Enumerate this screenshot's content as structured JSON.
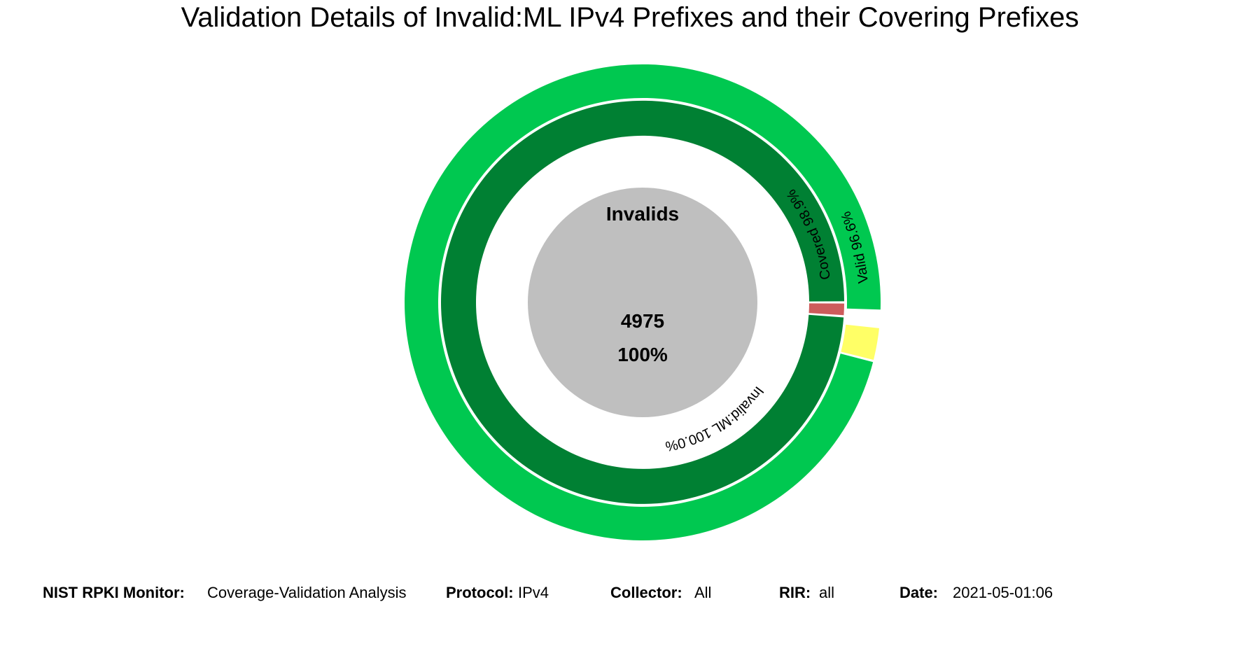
{
  "chart_data": {
    "type": "sunburst",
    "title": "Validation Details of Invalid:ML IPv4 Prefixes and their Covering Prefixes",
    "center": {
      "label": "Invalids",
      "count": "4975",
      "percent": "100%"
    },
    "rings": [
      {
        "name": "invalid-type",
        "segments": [
          {
            "name": "Invalid:ML",
            "value": 100.0,
            "label": "Invalid:ML 100.0%",
            "color": "#663399"
          }
        ]
      },
      {
        "name": "coverage",
        "segments": [
          {
            "name": "Covered",
            "value": 98.9,
            "label": "Covered 98.9%",
            "color": "#008033"
          },
          {
            "name": "Other",
            "value": 1.1,
            "label": "",
            "color": "#cd5c5c"
          }
        ]
      },
      {
        "name": "covering-validation",
        "segments": [
          {
            "name": "Valid",
            "value": 96.6,
            "label": "Valid 96.6%",
            "color": "#00c850"
          },
          {
            "name": "Other",
            "value": 2.3,
            "label": "",
            "color": "#ffff66"
          },
          {
            "name": "None",
            "value": 1.1,
            "label": "",
            "color": "#ffffff"
          }
        ]
      }
    ]
  },
  "footer": {
    "monitor_key": "NIST RPKI Monitor:",
    "monitor_value": "Coverage-Validation Analysis",
    "protocol_key": "Protocol:",
    "protocol_value": "IPv4",
    "collector_key": "Collector:",
    "collector_value": "All",
    "rir_key": "RIR:",
    "rir_value": "all",
    "date_key": "Date:",
    "date_value": "2021-05-01:06"
  }
}
